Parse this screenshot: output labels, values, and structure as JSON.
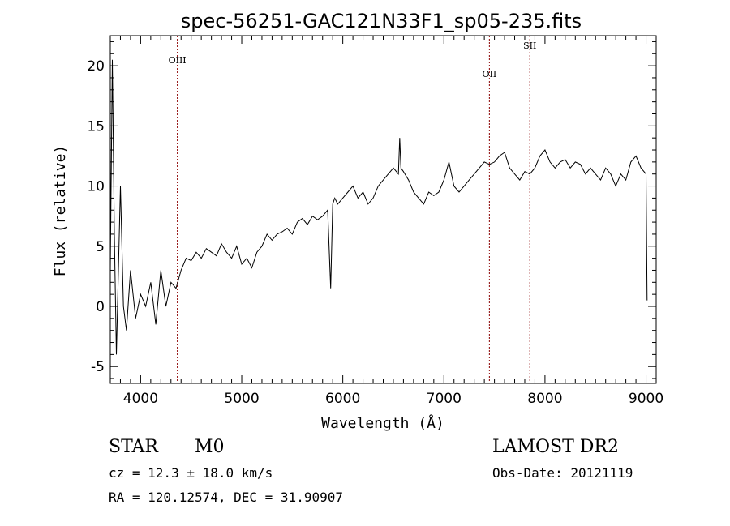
{
  "chart_data": {
    "type": "line",
    "title": "spec-56251-GAC121N33F1_sp05-235.fits",
    "xlabel": "Wavelength (Å)",
    "ylabel": "Flux (relative)",
    "xlim": [
      3700,
      9100
    ],
    "ylim": [
      -6.4,
      22.5
    ],
    "x_ticks": [
      4000,
      5000,
      6000,
      7000,
      8000,
      9000
    ],
    "y_ticks": [
      -5,
      0,
      5,
      10,
      15,
      20
    ],
    "grid": false,
    "series": [
      {
        "x": [
          3700,
          3720,
          3740,
          3760,
          3780,
          3800,
          3830,
          3860,
          3900,
          3950,
          4000,
          4050,
          4100,
          4150,
          4200,
          4250,
          4300,
          4350,
          4400,
          4450,
          4500,
          4550,
          4600,
          4650,
          4700,
          4750,
          4800,
          4850,
          4900,
          4950,
          5000,
          5050,
          5100,
          5150,
          5200,
          5250,
          5300,
          5350,
          5400,
          5450,
          5500,
          5550,
          5600,
          5650,
          5700,
          5750,
          5800,
          5850,
          5880,
          5900,
          5920,
          5950,
          6000,
          6050,
          6100,
          6150,
          6200,
          6250,
          6300,
          6350,
          6400,
          6450,
          6500,
          6550,
          6563,
          6575,
          6600,
          6650,
          6700,
          6750,
          6800,
          6850,
          6900,
          6950,
          7000,
          7050,
          7100,
          7150,
          7200,
          7250,
          7300,
          7350,
          7400,
          7450,
          7500,
          7550,
          7600,
          7650,
          7700,
          7750,
          7800,
          7850,
          7900,
          7950,
          8000,
          8050,
          8100,
          8150,
          8200,
          8250,
          8300,
          8350,
          8400,
          8450,
          8500,
          8550,
          8600,
          8650,
          8700,
          8750,
          8800,
          8850,
          8900,
          8950,
          9000,
          9010
        ],
        "y": [
          3.0,
          20.5,
          6.0,
          -4.0,
          3.0,
          10.0,
          0.0,
          -2.0,
          3.0,
          -1.0,
          1.0,
          0.0,
          2.0,
          -1.5,
          3.0,
          0.0,
          2.0,
          1.5,
          3.0,
          4.0,
          3.8,
          4.5,
          4.0,
          4.8,
          4.5,
          4.2,
          5.2,
          4.5,
          4.0,
          5.0,
          3.5,
          4.0,
          3.2,
          4.5,
          5.0,
          6.0,
          5.5,
          6.0,
          6.2,
          6.5,
          6.0,
          7.0,
          7.3,
          6.8,
          7.5,
          7.2,
          7.5,
          8.0,
          1.5,
          8.5,
          9.0,
          8.5,
          9.0,
          9.5,
          10.0,
          9.0,
          9.5,
          8.5,
          9.0,
          10.0,
          10.5,
          11.0,
          11.5,
          11.0,
          14.0,
          11.5,
          11.2,
          10.5,
          9.5,
          9.0,
          8.5,
          9.5,
          9.2,
          9.5,
          10.5,
          12.0,
          10.0,
          9.5,
          10.0,
          10.5,
          11.0,
          11.5,
          12.0,
          11.8,
          12.0,
          12.5,
          12.8,
          11.5,
          11.0,
          10.5,
          11.2,
          11.0,
          11.5,
          12.5,
          13.0,
          12.0,
          11.5,
          12.0,
          12.2,
          11.5,
          12.0,
          11.8,
          11.0,
          11.5,
          11.0,
          10.5,
          11.5,
          11.0,
          10.0,
          11.0,
          10.5,
          12.0,
          12.5,
          11.5,
          11.0,
          0.5
        ]
      }
    ],
    "line_markers": [
      {
        "label": "OIII",
        "x": 4363
      },
      {
        "label": "OII",
        "x": 7450
      },
      {
        "label": "SII",
        "x": 7850
      }
    ]
  },
  "info": {
    "object_class": "STAR",
    "subclass": "M0",
    "survey": "LAMOST DR2",
    "redshift_line": "cz = 12.3 ± 18.0 km/s",
    "obs_date_line": "Obs-Date: 20121119",
    "coords_line": "RA = 120.12574, DEC =  31.90907"
  },
  "colors": {
    "spectrum": "#000000",
    "marker_line": "#8b0000",
    "axes": "#000000"
  }
}
